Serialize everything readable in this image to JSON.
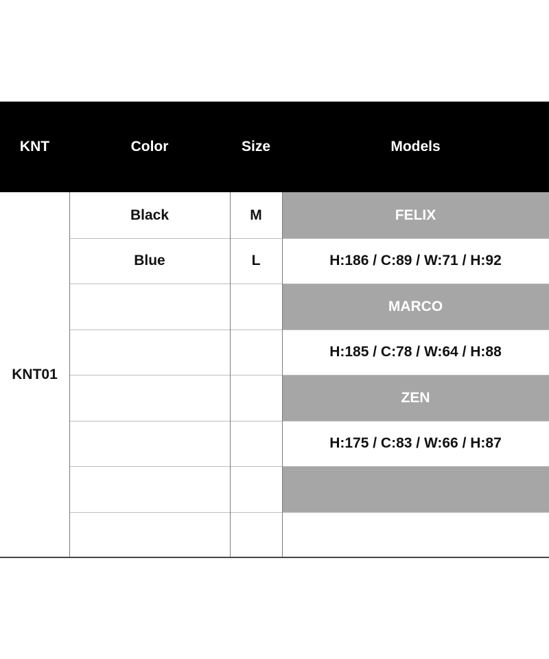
{
  "header": {
    "knt": "KNT",
    "color": "Color",
    "size": "Size",
    "models": "Models"
  },
  "product_code": "KNT01",
  "rows": [
    {
      "color": "Black",
      "size": "M",
      "model": "FELIX",
      "shaded": true
    },
    {
      "color": "Blue",
      "size": "L",
      "model": "H:186 / C:89 / W:71 / H:92",
      "shaded": false
    },
    {
      "color": "",
      "size": "",
      "model": "MARCO",
      "shaded": true
    },
    {
      "color": "",
      "size": "",
      "model": "H:185 / C:78 / W:64 / H:88",
      "shaded": false
    },
    {
      "color": "",
      "size": "",
      "model": "ZEN",
      "shaded": true
    },
    {
      "color": "",
      "size": "",
      "model": "H:175 / C:83 / W:66 / H:87",
      "shaded": false
    },
    {
      "color": "",
      "size": "",
      "model": "",
      "shaded": true
    },
    {
      "color": "",
      "size": "",
      "model": "",
      "shaded": false
    }
  ],
  "colors": {
    "header_bg": "#000000",
    "shaded_bg": "#a6a6a6"
  }
}
